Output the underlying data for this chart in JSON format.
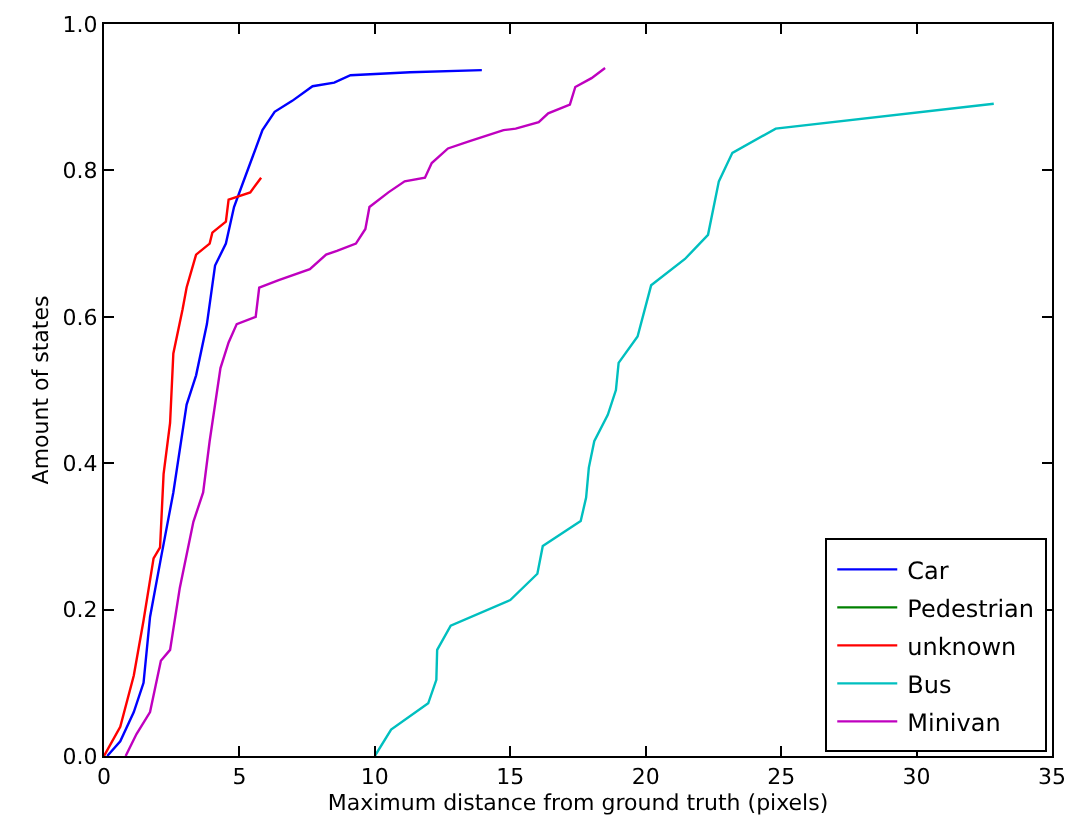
{
  "chart_data": {
    "type": "line",
    "xlabel": "Maximum distance from ground truth (pixels)",
    "ylabel": "Amount of states",
    "xlim": [
      0,
      35
    ],
    "ylim": [
      0,
      1.0
    ],
    "xticks": [
      0,
      5,
      10,
      15,
      20,
      25,
      30,
      35
    ],
    "yticks": [
      {
        "value": 0,
        "label": "0.0"
      },
      {
        "value": 0.2,
        "label": "0.2"
      },
      {
        "value": 0.4,
        "label": "0.4"
      },
      {
        "value": 0.6,
        "label": "0.6"
      },
      {
        "value": 0.8,
        "label": "0.8"
      },
      {
        "value": 1.0,
        "label": "1.0"
      }
    ],
    "legend": "bottom right",
    "marker": "none",
    "line_style": "solid",
    "series": [
      {
        "name": "Car",
        "color": "#0000ff",
        "x": [
          0.12,
          0.6,
          1.1,
          1.46,
          1.7,
          2.1,
          2.56,
          3.05,
          3.4,
          3.8,
          4.1,
          4.5,
          4.8,
          5.1,
          5.5,
          5.85,
          6.3,
          6.95,
          7.7,
          8.5,
          9.1,
          11.3,
          13.95
        ],
        "values": [
          0,
          0.02,
          0.06,
          0.1,
          0.19,
          0.27,
          0.36,
          0.48,
          0.52,
          0.59,
          0.67,
          0.7,
          0.75,
          0.78,
          0.82,
          0.855,
          0.88,
          0.895,
          0.915,
          0.92,
          0.93,
          0.934,
          0.937
        ]
      },
      {
        "name": "Pedestrian",
        "color": "#008000"
      },
      {
        "name": "unknown",
        "color": "#ff0000",
        "x": [
          0,
          0.6,
          1.1,
          1.46,
          1.83,
          2.07,
          2.2,
          2.44,
          2.56,
          2.9,
          3.05,
          3.4,
          3.9,
          4.0,
          4.5,
          4.6,
          5.4,
          5.8
        ],
        "values": [
          0,
          0.04,
          0.11,
          0.185,
          0.27,
          0.285,
          0.385,
          0.455,
          0.55,
          0.61,
          0.64,
          0.685,
          0.7,
          0.715,
          0.73,
          0.76,
          0.77,
          0.79
        ]
      },
      {
        "name": "Bus",
        "color": "#00bfbf",
        "x": [
          10,
          10.6,
          11.97,
          12.27,
          12.3,
          12.8,
          15.0,
          16.0,
          16.2,
          17.6,
          17.8,
          17.9,
          18.1,
          18.6,
          18.9,
          19.0,
          19.7,
          20.2,
          21.45,
          22.3,
          22.7,
          23.2,
          24.8,
          32.85
        ],
        "values": [
          0,
          0.036,
          0.072,
          0.104,
          0.145,
          0.178,
          0.213,
          0.249,
          0.287,
          0.321,
          0.353,
          0.394,
          0.43,
          0.466,
          0.5,
          0.537,
          0.573,
          0.643,
          0.679,
          0.712,
          0.785,
          0.824,
          0.857,
          0.891
        ]
      },
      {
        "name": "Minivan",
        "color": "#bf00bf",
        "x": [
          0.8,
          1.2,
          1.7,
          2.1,
          2.44,
          2.8,
          3.3,
          3.66,
          3.9,
          4.3,
          4.6,
          4.9,
          5.6,
          5.73,
          6.45,
          7.6,
          8.2,
          8.6,
          9.3,
          9.65,
          9.8,
          10.5,
          11.1,
          11.85,
          12.1,
          12.7,
          13.5,
          14.75,
          15.2,
          16.05,
          16.4,
          17.2,
          17.4,
          18.0,
          18.5
        ],
        "values": [
          0,
          0.03,
          0.06,
          0.13,
          0.145,
          0.23,
          0.32,
          0.36,
          0.43,
          0.53,
          0.565,
          0.59,
          0.6,
          0.64,
          0.65,
          0.665,
          0.685,
          0.69,
          0.7,
          0.72,
          0.75,
          0.77,
          0.785,
          0.79,
          0.81,
          0.83,
          0.84,
          0.855,
          0.857,
          0.866,
          0.878,
          0.89,
          0.914,
          0.926,
          0.94
        ]
      }
    ]
  }
}
